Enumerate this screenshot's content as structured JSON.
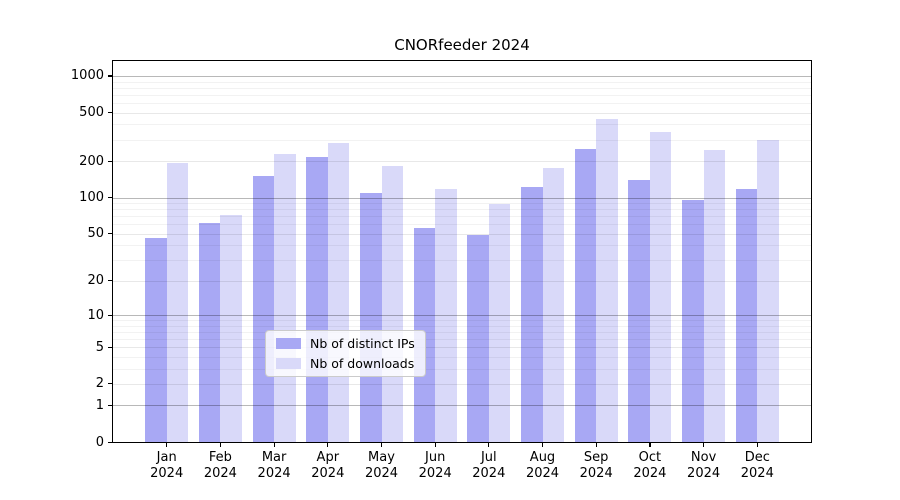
{
  "figure": {
    "background": "#ffffff",
    "plot_border_color": "#000000"
  },
  "chart_data": {
    "type": "bar",
    "title": "CNORfeeder 2024",
    "xlabel": "",
    "ylabel": "",
    "grid": true,
    "categories": [
      "Jan",
      "Feb",
      "Mar",
      "Apr",
      "May",
      "Jun",
      "Jul",
      "Aug",
      "Sep",
      "Oct",
      "Nov",
      "Dec"
    ],
    "x_year_label": "2024",
    "series": [
      {
        "id": "distinct-ips",
        "name": "Nb of distinct IPs",
        "color": "#a8a8f4",
        "values": [
          46,
          61,
          152,
          214,
          110,
          56,
          49,
          122,
          250,
          139,
          95,
          118
        ]
      },
      {
        "id": "downloads",
        "name": "Nb of downloads",
        "color": "#d9d9f9",
        "values": [
          193,
          71,
          227,
          283,
          181,
          117,
          88,
          175,
          445,
          344,
          245,
          300
        ]
      }
    ],
    "y_axis": {
      "scale": "log10(1+y)",
      "ylim": [
        0,
        1350
      ],
      "tick_values": [
        0,
        1,
        2,
        5,
        10,
        20,
        50,
        100,
        200,
        500,
        1000
      ],
      "tick_labels": [
        "0",
        "1",
        "2",
        "5",
        "10",
        "20",
        "50",
        "100",
        "200",
        "500",
        "1000"
      ],
      "major_tick_values": [
        1,
        10,
        100,
        1000
      ],
      "minor_grid_values": [
        3,
        4,
        6,
        7,
        8,
        9,
        30,
        40,
        60,
        70,
        80,
        90,
        300,
        400,
        600,
        700,
        800,
        900
      ]
    },
    "legend": {
      "position": "inside-bottom-center",
      "entries": [
        "Nb of distinct IPs",
        "Nb of downloads"
      ]
    }
  }
}
